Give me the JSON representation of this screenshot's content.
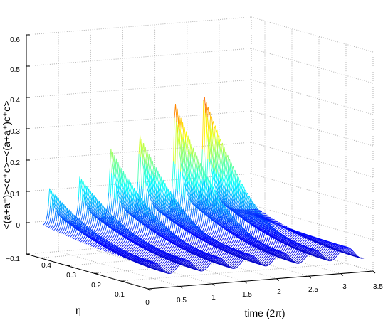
{
  "chart_data": {
    "type": "surface-waterfall",
    "title": "",
    "xlabel": "time (2π)",
    "ylabel": "η",
    "zlabel": "<(a+a⁺)><c⁺c>−<(a+a⁺)c⁺c>",
    "xlim": [
      0,
      3.5
    ],
    "ylim": [
      0,
      0.45
    ],
    "zlim": [
      -0.1,
      0.6
    ],
    "x_ticks": [
      "0",
      "0.5",
      "1",
      "1.5",
      "2",
      "2.5",
      "3",
      "3.5"
    ],
    "y_ticks": [
      "0.1",
      "0.2",
      "0.3",
      "0.4"
    ],
    "z_ticks": [
      "−0.1",
      "0",
      "0.1",
      "0.2",
      "0.3",
      "0.4",
      "0.5",
      "0.6"
    ],
    "grid": true,
    "colormap": "jet",
    "colors": {
      "low": "#0000ff",
      "mid": "#00ffff",
      "high": "#ff0000"
    },
    "series_description": "Curves z(t) for a range of η; the front curve (largest η) shows peaks that grow with time",
    "front_curve_peaks": [
      {
        "t": 0.15,
        "z": 0.12
      },
      {
        "t": 0.62,
        "z": 0.15
      },
      {
        "t": 1.1,
        "z": 0.24
      },
      {
        "t": 1.55,
        "z": 0.28
      },
      {
        "t": 2.1,
        "z": 0.39
      },
      {
        "t": 2.55,
        "z": 0.41
      }
    ]
  }
}
